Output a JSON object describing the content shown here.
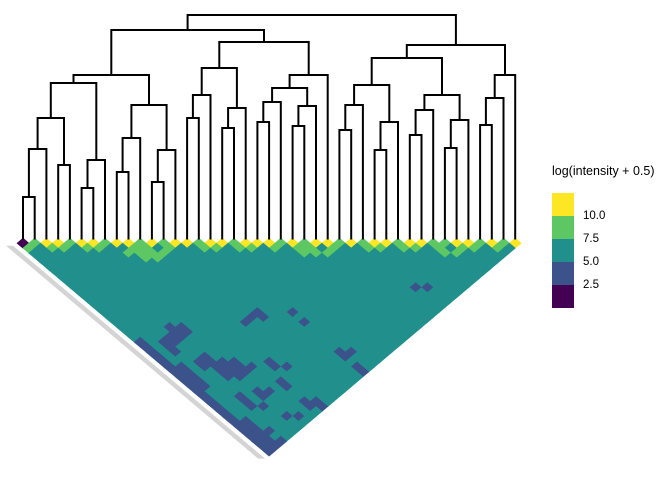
{
  "legend": {
    "title": "log(intensity + 0.5)",
    "tick_labels": [
      "10.0",
      "7.5",
      "5.0",
      "2.5"
    ],
    "block_colors": [
      "#FDE725",
      "#5DC863",
      "#21908C",
      "#3B528B",
      "#440154"
    ]
  },
  "colors": {
    "background": "#ffffff",
    "dendrogram_line": "#000000",
    "triangle_shadow": "#d4d4d4"
  },
  "chart_data": {
    "type": "heatmap",
    "subtype": "clustered lower-triangle heatmap rotated 45deg with dendrogram on top (diagonal along top edge)",
    "title": "",
    "legend_title": "log(intensity + 0.5)",
    "legend_ticks": [
      10.0,
      7.5,
      5.0,
      2.5
    ],
    "legend_position": "right",
    "n_leaves": 43,
    "palette": {
      "P": "#440154",
      "B": "#3B528B",
      "T": "#21908C",
      "G": "#5DC863",
      "Y": "#FDE725"
    },
    "palette_value_bins": {
      "P": "< 2.5",
      "B": "2.5 - 5.0",
      "T": "5.0 - 7.5",
      "G": "7.5 - 10.0",
      "Y": "> 10.0"
    },
    "rows_note": "rows[d] = cells at distance d from the matrix diagonal; row d has 43-d cells, left to right; char = color bin",
    "rows": [
      "PGYYGYYGYYGYGYYGYYGYYYGYGYYGYGYYGYYGGYYGYGY",
      "GTGGTGGTTGGTGTTGGTGGTGTGGTGTTGGTGGTGTGGTGT",
      "TTTTTTTTGGGGTTTTTTTTTTTGGGTTTTTTTTTGGTTTT",
      "TTTTTTTTTGGTTTTTTTTTTTTTTTTTTTTTTTTTTTTT",
      "TTTTTTTTTTTTTTTTTTTTTTTTTTTTTTTTTTTTTTT",
      "TTTTTTTTTTTTTTTTTTTTTTTTTTTTTTTTTTTTTT",
      "TTTTTTTTTTTTTTTTTTTTTTTTTTTTTTTTTTTTT",
      "TTTTTTTTTTTTTTTTTTTTTTTTTTTTTTTTTTTT",
      "TTTTTTTTTTTTTTTTTTTTTTTTTTTTTTTTTTT",
      "TTTTTTTTTTTTTTTTTTTTTTTTTTTTTBBTTT",
      "TTTTTTTTTTTTTTTTTTTTTTTTTTTTTTTTT",
      "TTTTTTTTTTTTTTTTTTTTTTTTTTTTTTTT",
      "TTTTTTTTTTTTTTTTTTTTTTTTTTTTTTT",
      "TTTTTTTTTTTTTTTTTTTTTTTTTTTTTT",
      "TTTTTTTTTTTTTBTTBTTTTTTTTTTTT",
      "TTTTTTTTTTTTBBTTTTTTTTTTTTTT",
      "TTTTTTTTTTTBTTTTBTTTTTTTTTT",
      "TTTTBBTTTTTTTTTTTTTTTTTTTT",
      "TTTTBBTTTTTTTTTTTTTTTTTTT",
      "TTTBBTTTTTTTTTTTTTTTTTTT",
      "BTBBTTTTTTTTTTTTTTTTTTT",
      "BTBTTTTTTTTTTTTTTTTTTT",
      "BTBTTTTTTTTTTTTTBBTTT",
      "BTTTBTTTTTTTTTTTBTTT",
      "BTTBBBBTTBTTTTTTTTT",
      "BBTBBBBBTBBTTTTTBT",
      "BBTTBBBTTTTTTTTTB",
      "BBTTBBTTTTTTTTTT",
      "BBTTTTTTBTTTTTT",
      "BBTTTTTTBTTTTT",
      "BTTTTBBTTTTTT",
      "BTTBTBTTTTTT",
      "BTTBTTTTBBT",
      "BTTBBTTTBB",
      "BTTTTTTTT",
      "BTTTTBBT",
      "BBTTTTT",
      "BBTTTT",
      "BBBTT",
      "BBTT",
      "BBB",
      "BB",
      "B"
    ],
    "dendrogram_note": "nested merge nodes: [merge_height_y_px, left_child, right_child]; integer = leaf index 0..42",
    "dendrogram": [
      15,
      [
        30,
        [
          75,
          [
            83,
            [
              118,
              [
                149,
                [
                  197,
                  0,
                  1
                ],
                2
              ],
              [
                165,
                3,
                4
              ]
            ],
            [
              160,
              [
                188,
                5,
                6
              ],
              7
            ]
          ],
          [
            105,
            [
              138,
              [
                172,
                8,
                9
              ],
              10
            ],
            [
              150,
              [
                182,
                11,
                12
              ],
              13
            ]
          ]
        ],
        [
          42,
          [
            68,
            [
              95,
              [
                118,
                14,
                15
              ],
              16
            ],
            [
              108,
              [
                128,
                17,
                18
              ],
              19
            ]
          ],
          [
            75,
            [
              88,
              [
                102,
                [
                  122,
                  20,
                  21
                ],
                22
              ],
              [
                106,
                [
                  126,
                  23,
                  24
                ],
                25
              ]
            ],
            26
          ]
        ]
      ],
      [
        45,
        [
          58,
          [
            85,
            [
              105,
              [
                130,
                27,
                28
              ],
              29
            ],
            [
              122,
              [
                150,
                30,
                31
              ],
              32
            ]
          ],
          [
            95,
            [
              110,
              [
                135,
                33,
                34
              ],
              35
            ],
            [
              120,
              [
                148,
                36,
                37
              ],
              38
            ]
          ]
        ],
        [
          75,
          [
            98,
            [
              125,
              39,
              40
            ],
            41
          ],
          42
        ]
      ]
    ]
  }
}
